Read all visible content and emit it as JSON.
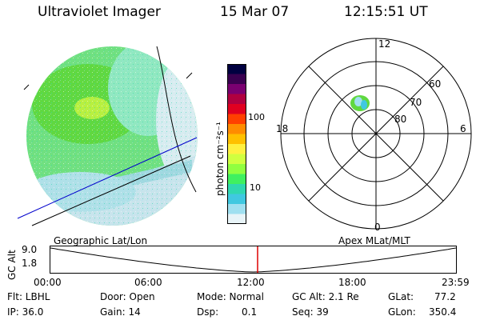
{
  "header": {
    "title": "Ultraviolet Imager",
    "date": "15 Mar 07",
    "time": "12:15:51 UT"
  },
  "colorbar": {
    "unit_label": "photon cm⁻²s⁻¹",
    "ticks": [
      "100",
      "10"
    ],
    "colors": [
      "#000040",
      "#3a0050",
      "#7a0070",
      "#b00040",
      "#e00020",
      "#ff4000",
      "#ff8c00",
      "#ffc000",
      "#fff040",
      "#d0ff40",
      "#90ff40",
      "#40f060",
      "#30d8b0",
      "#40c8e0",
      "#a0e0f0",
      "#e8f4f8"
    ]
  },
  "polar_plot": {
    "clock_labels": [
      "12",
      "18",
      "6",
      "0"
    ],
    "lat_labels": [
      "60",
      "70",
      "80"
    ]
  },
  "timeline": {
    "y_label": "GC Alt",
    "y_ticks": [
      "9.0",
      "1.8"
    ],
    "left_caption": "Geographic Lat/Lon",
    "right_caption": "Apex MLat/MLT",
    "x_ticks": [
      "00:00",
      "06:00",
      "12:00",
      "18:00",
      "23:59"
    ],
    "marker_time": "12:15"
  },
  "footer": {
    "filter": "Flt: LBHL",
    "ip": "IP: 36.0",
    "door": "Door: Open",
    "gain": "Gain: 14",
    "mode": "Mode: Normal",
    "dsp_label": "Dsp:",
    "dsp_value": "0.1",
    "gc_alt": "GC Alt: 2.1 Re",
    "seq": "Seq: 39",
    "glat_label": "GLat:",
    "glat_value": "77.2",
    "glon_label": "GLon:",
    "glon_value": "350.4"
  }
}
